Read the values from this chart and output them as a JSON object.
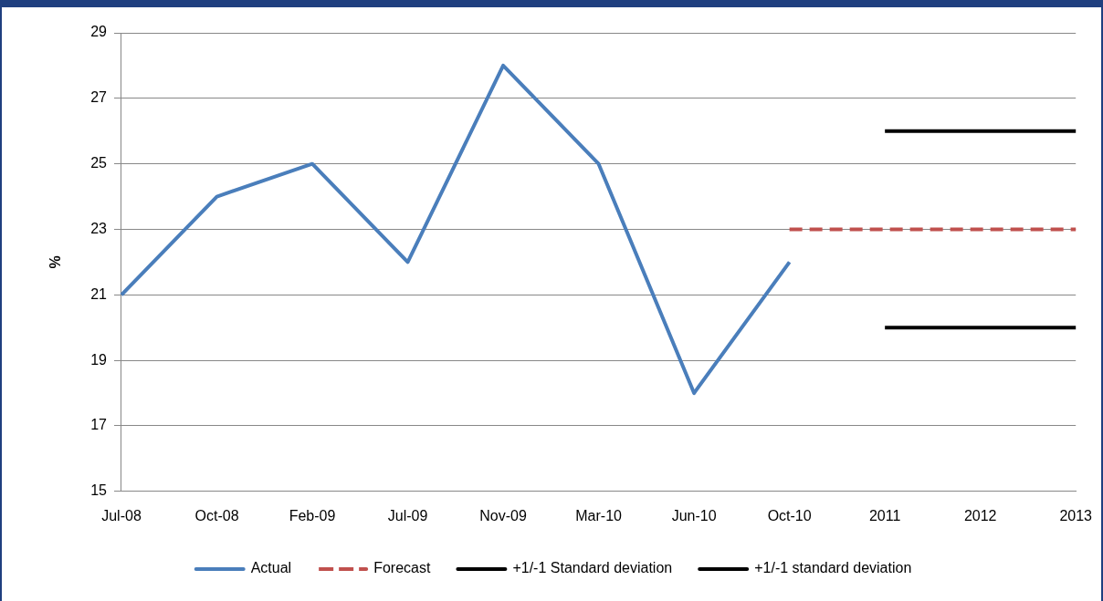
{
  "chart_data": {
    "type": "line",
    "ylabel": "%",
    "categories": [
      "Jul-08",
      "Oct-08",
      "Feb-09",
      "Jul-09",
      "Nov-09",
      "Mar-10",
      "Jun-10",
      "Oct-10",
      "2011",
      "2012",
      "2013"
    ],
    "ylim": [
      15,
      29
    ],
    "yticks": [
      15,
      17,
      19,
      21,
      23,
      25,
      27,
      29
    ],
    "grid": "y",
    "legend": "bottom",
    "marker": "none",
    "series": [
      {
        "name": "Actual",
        "color": "#4a7ebb",
        "line_style": "solid",
        "values": [
          21,
          24,
          25,
          22,
          28,
          25,
          18,
          22,
          null,
          null,
          null
        ]
      },
      {
        "name": "Forecast",
        "color": "#c0504d",
        "line_style": "dashed",
        "values": [
          null,
          null,
          null,
          null,
          null,
          null,
          null,
          23,
          23,
          23,
          23
        ]
      },
      {
        "name": "+1/-1 Standard deviation",
        "color": "#000000",
        "line_style": "solid",
        "values": [
          null,
          null,
          null,
          null,
          null,
          null,
          null,
          null,
          26,
          26,
          26
        ]
      },
      {
        "name": "+1/-1 standard deviation",
        "color": "#000000",
        "line_style": "solid",
        "values": [
          null,
          null,
          null,
          null,
          null,
          null,
          null,
          null,
          20,
          20,
          20
        ]
      }
    ]
  }
}
